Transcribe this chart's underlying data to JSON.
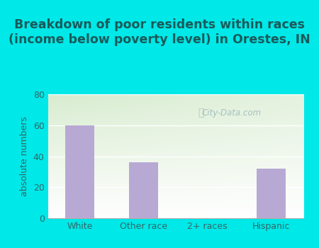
{
  "categories": [
    "White",
    "Other race",
    "2+ races",
    "Hispanic"
  ],
  "values": [
    60,
    36,
    0,
    32
  ],
  "bar_color": "#b8a9d4",
  "title": "Breakdown of poor residents within races\n(income below poverty level) in Orestes, IN",
  "ylabel": "absolute numbers",
  "ylim": [
    0,
    80
  ],
  "yticks": [
    0,
    20,
    40,
    60,
    80
  ],
  "outer_bg": "#00e8e8",
  "plot_bg_topleft": "#d8ecd0",
  "plot_bg_bottomright": "#ffffff",
  "title_fontsize": 12.5,
  "title_color": "#1a5a5a",
  "label_fontsize": 9,
  "tick_fontsize": 9,
  "tick_color": "#336666",
  "watermark": "City-Data.com",
  "gridline_color": "#ffffff",
  "bar_edge_color": "none"
}
